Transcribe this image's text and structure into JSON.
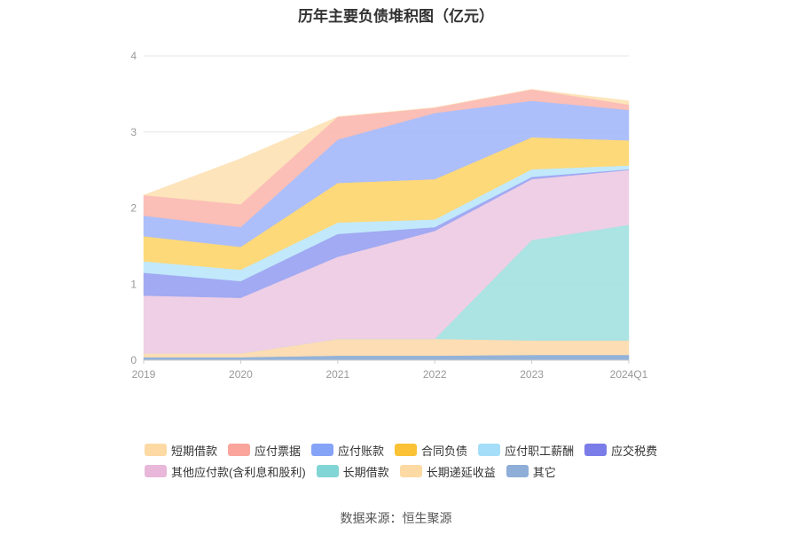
{
  "chart_data": {
    "type": "area",
    "title": "历年主要负债堆积图（亿元）",
    "xlabel": "",
    "ylabel": "",
    "categories": [
      "2019",
      "2020",
      "2021",
      "2022",
      "2023",
      "2024Q1"
    ],
    "ylim": [
      0,
      4
    ],
    "yticks": [
      "0",
      "1",
      "2",
      "3",
      "4"
    ],
    "stacked": true,
    "grid": true,
    "legend_position": "bottom",
    "series": [
      {
        "name": "其它",
        "color": "#8eaed8",
        "values": [
          0.04,
          0.04,
          0.06,
          0.06,
          0.07,
          0.07
        ]
      },
      {
        "name": "长期递延收益",
        "color": "#fcdcb0",
        "values": [
          0.05,
          0.05,
          0.22,
          0.22,
          0.19,
          0.19
        ]
      },
      {
        "name": "长期借款",
        "color": "#a8e2e2",
        "values": [
          0,
          0,
          0,
          0,
          1.32,
          1.52
        ]
      },
      {
        "name": "其他应付款(含利息和股利)",
        "color": "#efcde5",
        "values": [
          0.76,
          0.73,
          1.08,
          1.42,
          0.8,
          0.72
        ]
      },
      {
        "name": "应交税费",
        "color": "#9da6f2",
        "values": [
          0.3,
          0.22,
          0.3,
          0.05,
          0.03,
          0.01
        ]
      },
      {
        "name": "应付职工薪酬",
        "color": "#bfe8fb",
        "values": [
          0.15,
          0.15,
          0.15,
          0.1,
          0.1,
          0.05
        ]
      },
      {
        "name": "合同负债",
        "color": "#fed772",
        "values": [
          0.33,
          0.3,
          0.52,
          0.53,
          0.42,
          0.33
        ]
      },
      {
        "name": "应付账款",
        "color": "#a9bcfa",
        "values": [
          0.27,
          0.26,
          0.57,
          0.87,
          0.48,
          0.4
        ]
      },
      {
        "name": "应付票据",
        "color": "#fbbcb4",
        "values": [
          0.27,
          0.3,
          0.3,
          0.07,
          0.15,
          0.07
        ]
      },
      {
        "name": "短期借款",
        "color": "#fde3b8",
        "values": [
          0,
          0.6,
          0,
          0,
          0,
          0.05
        ]
      }
    ],
    "legend": [
      [
        "短期借款",
        "应付票据",
        "应付账款",
        "合同负债",
        "应付职工薪酬",
        "应交税费"
      ],
      [
        "其他应付款(含利息和股利)",
        "长期借款",
        "长期递延收益",
        "其它"
      ]
    ],
    "legend_colors": {
      "短期借款": "#fdd9a3",
      "应付票据": "#f9a59c",
      "应付账款": "#85a3f7",
      "合同负债": "#fbc236",
      "应付职工薪酬": "#a5def9",
      "应交税费": "#7a7ce8",
      "其他应付款(含利息和股利)": "#e8b7d9",
      "长期借款": "#82d5d5",
      "长期递延收益": "#fdd9a3",
      "其它": "#8eaed8"
    }
  },
  "source_text": "数据来源：恒生聚源"
}
